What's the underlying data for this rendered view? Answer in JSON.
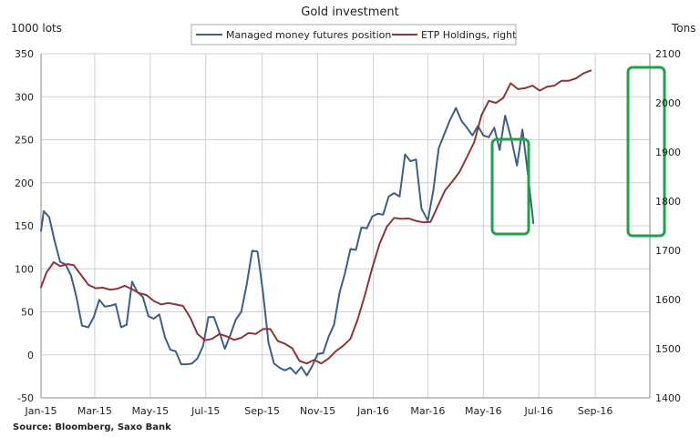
{
  "chart_data": {
    "type": "line",
    "title": "Gold investment",
    "ylabel": "1000 lots",
    "y2label": "Tons",
    "source": "Source: Bloomberg, Saxo Bank",
    "legend_position": "top-center",
    "grid": true,
    "x_range": [
      "2015-01-01",
      "2016-10-31"
    ],
    "xticks": [
      {
        "date": "2015-01-01",
        "label": "Jan-15"
      },
      {
        "date": "2015-03-01",
        "label": "Mar-15"
      },
      {
        "date": "2015-05-01",
        "label": "May-15"
      },
      {
        "date": "2015-07-01",
        "label": "Jul-15"
      },
      {
        "date": "2015-09-01",
        "label": "Sep-15"
      },
      {
        "date": "2015-11-01",
        "label": "Nov-15"
      },
      {
        "date": "2016-01-01",
        "label": "Jan-16"
      },
      {
        "date": "2016-03-01",
        "label": "Mar-16"
      },
      {
        "date": "2016-05-01",
        "label": "May-16"
      },
      {
        "date": "2016-07-01",
        "label": "Jul-16"
      },
      {
        "date": "2016-09-01",
        "label": "Sep-16"
      }
    ],
    "ylim": [
      -50,
      350
    ],
    "yticks": [
      -50,
      0,
      50,
      100,
      150,
      200,
      250,
      300,
      350
    ],
    "y2lim": [
      1400,
      2100
    ],
    "y2ticks": [
      1400,
      1500,
      1600,
      1700,
      1800,
      1900,
      2000,
      2100
    ],
    "series": [
      {
        "name": "Managed money futures position",
        "axis": "left",
        "color": "#3d5f88",
        "points": [
          [
            "2015-01-01",
            144
          ],
          [
            "2015-01-04",
            167
          ],
          [
            "2015-01-10",
            160
          ],
          [
            "2015-01-16",
            132
          ],
          [
            "2015-01-22",
            108
          ],
          [
            "2015-01-28",
            105
          ],
          [
            "2015-02-03",
            92
          ],
          [
            "2015-02-09",
            67
          ],
          [
            "2015-02-15",
            34
          ],
          [
            "2015-02-22",
            32
          ],
          [
            "2015-02-28",
            44
          ],
          [
            "2015-03-06",
            64
          ],
          [
            "2015-03-12",
            56
          ],
          [
            "2015-03-18",
            57
          ],
          [
            "2015-03-24",
            59
          ],
          [
            "2015-03-30",
            32
          ],
          [
            "2015-04-05",
            35
          ],
          [
            "2015-04-11",
            85
          ],
          [
            "2015-04-17",
            73
          ],
          [
            "2015-04-23",
            67
          ],
          [
            "2015-04-29",
            45
          ],
          [
            "2015-05-05",
            42
          ],
          [
            "2015-05-11",
            47
          ],
          [
            "2015-05-17",
            21
          ],
          [
            "2015-05-23",
            6
          ],
          [
            "2015-05-29",
            4
          ],
          [
            "2015-06-04",
            -11
          ],
          [
            "2015-06-10",
            -11
          ],
          [
            "2015-06-16",
            -10
          ],
          [
            "2015-06-22",
            -4
          ],
          [
            "2015-06-28",
            10
          ],
          [
            "2015-07-04",
            44
          ],
          [
            "2015-07-10",
            44
          ],
          [
            "2015-07-16",
            26
          ],
          [
            "2015-07-22",
            7
          ],
          [
            "2015-07-28",
            23
          ],
          [
            "2015-08-03",
            41
          ],
          [
            "2015-08-09",
            50
          ],
          [
            "2015-08-15",
            82
          ],
          [
            "2015-08-21",
            121
          ],
          [
            "2015-08-27",
            120
          ],
          [
            "2015-09-02",
            72
          ],
          [
            "2015-09-08",
            14
          ],
          [
            "2015-09-14",
            -10
          ],
          [
            "2015-09-20",
            -15
          ],
          [
            "2015-09-26",
            -18
          ],
          [
            "2015-10-02",
            -15
          ],
          [
            "2015-10-08",
            -22
          ],
          [
            "2015-10-14",
            -14
          ],
          [
            "2015-10-20",
            -24
          ],
          [
            "2015-10-26",
            -13
          ],
          [
            "2015-11-01",
            1
          ],
          [
            "2015-11-07",
            2
          ],
          [
            "2015-11-13",
            21
          ],
          [
            "2015-11-19",
            35
          ],
          [
            "2015-11-25",
            72
          ],
          [
            "2015-12-01",
            95
          ],
          [
            "2015-12-07",
            123
          ],
          [
            "2015-12-13",
            122
          ],
          [
            "2015-12-19",
            148
          ],
          [
            "2015-12-25",
            147
          ],
          [
            "2015-12-31",
            161
          ],
          [
            "2016-01-06",
            164
          ],
          [
            "2016-01-12",
            163
          ],
          [
            "2016-01-18",
            184
          ],
          [
            "2016-01-24",
            188
          ],
          [
            "2016-01-30",
            184
          ],
          [
            "2016-02-05",
            233
          ],
          [
            "2016-02-11",
            225
          ],
          [
            "2016-02-17",
            227
          ],
          [
            "2016-02-23",
            170
          ],
          [
            "2016-03-01",
            156
          ],
          [
            "2016-03-07",
            191
          ],
          [
            "2016-03-13",
            240
          ],
          [
            "2016-03-19",
            256
          ],
          [
            "2016-03-25",
            272
          ],
          [
            "2016-04-01",
            287
          ],
          [
            "2016-04-07",
            272
          ],
          [
            "2016-04-13",
            264
          ],
          [
            "2016-04-19",
            255
          ],
          [
            "2016-04-25",
            266
          ],
          [
            "2016-05-01",
            255
          ],
          [
            "2016-05-07",
            253
          ],
          [
            "2016-05-13",
            264
          ],
          [
            "2016-05-19",
            238
          ],
          [
            "2016-05-25",
            278
          ],
          [
            "2016-06-01",
            250
          ],
          [
            "2016-06-07",
            220
          ],
          [
            "2016-06-13",
            262
          ],
          [
            "2016-06-19",
            210
          ],
          [
            "2016-06-25",
            153
          ]
        ]
      },
      {
        "name": "ETP Holdings, right",
        "axis": "right",
        "color": "#8e3535",
        "points": [
          [
            "2015-01-01",
            1625
          ],
          [
            "2015-01-07",
            1655
          ],
          [
            "2015-01-15",
            1676
          ],
          [
            "2015-01-22",
            1668
          ],
          [
            "2015-01-30",
            1672
          ],
          [
            "2015-02-06",
            1670
          ],
          [
            "2015-02-14",
            1650
          ],
          [
            "2015-02-22",
            1630
          ],
          [
            "2015-03-02",
            1623
          ],
          [
            "2015-03-10",
            1624
          ],
          [
            "2015-03-18",
            1620
          ],
          [
            "2015-03-26",
            1622
          ],
          [
            "2015-04-03",
            1628
          ],
          [
            "2015-04-11",
            1621
          ],
          [
            "2015-04-19",
            1613
          ],
          [
            "2015-04-27",
            1609
          ],
          [
            "2015-05-05",
            1597
          ],
          [
            "2015-05-13",
            1590
          ],
          [
            "2015-05-21",
            1593
          ],
          [
            "2015-05-29",
            1590
          ],
          [
            "2015-06-06",
            1587
          ],
          [
            "2015-06-14",
            1563
          ],
          [
            "2015-06-22",
            1530
          ],
          [
            "2015-06-30",
            1517
          ],
          [
            "2015-07-08",
            1520
          ],
          [
            "2015-07-16",
            1530
          ],
          [
            "2015-07-24",
            1525
          ],
          [
            "2015-08-01",
            1518
          ],
          [
            "2015-08-09",
            1522
          ],
          [
            "2015-08-17",
            1532
          ],
          [
            "2015-08-25",
            1530
          ],
          [
            "2015-09-02",
            1540
          ],
          [
            "2015-09-10",
            1540
          ],
          [
            "2015-09-18",
            1516
          ],
          [
            "2015-09-26",
            1510
          ],
          [
            "2015-10-04",
            1501
          ],
          [
            "2015-10-12",
            1475
          ],
          [
            "2015-10-20",
            1470
          ],
          [
            "2015-10-28",
            1477
          ],
          [
            "2015-11-05",
            1470
          ],
          [
            "2015-11-13",
            1480
          ],
          [
            "2015-11-21",
            1495
          ],
          [
            "2015-11-29",
            1506
          ],
          [
            "2015-12-07",
            1520
          ],
          [
            "2015-12-15",
            1560
          ],
          [
            "2015-12-23",
            1610
          ],
          [
            "2015-12-31",
            1665
          ],
          [
            "2016-01-08",
            1713
          ],
          [
            "2016-01-16",
            1748
          ],
          [
            "2016-01-24",
            1766
          ],
          [
            "2016-02-01",
            1764
          ],
          [
            "2016-02-09",
            1765
          ],
          [
            "2016-02-17",
            1760
          ],
          [
            "2016-02-25",
            1757
          ],
          [
            "2016-03-04",
            1758
          ],
          [
            "2016-03-12",
            1790
          ],
          [
            "2016-03-20",
            1822
          ],
          [
            "2016-03-28",
            1840
          ],
          [
            "2016-04-05",
            1860
          ],
          [
            "2016-04-13",
            1890
          ],
          [
            "2016-04-21",
            1920
          ],
          [
            "2016-04-29",
            1975
          ],
          [
            "2016-05-07",
            2004
          ],
          [
            "2016-05-15",
            2000
          ],
          [
            "2016-05-23",
            2010
          ],
          [
            "2016-05-31",
            2040
          ],
          [
            "2016-06-08",
            2028
          ],
          [
            "2016-06-16",
            2030
          ],
          [
            "2016-06-24",
            2035
          ],
          [
            "2016-07-02",
            2025
          ],
          [
            "2016-07-10",
            2033
          ],
          [
            "2016-07-18",
            2035
          ],
          [
            "2016-07-26",
            2045
          ],
          [
            "2016-08-03",
            2045
          ],
          [
            "2016-08-11",
            2050
          ],
          [
            "2016-08-19",
            2060
          ],
          [
            "2016-08-27",
            2066
          ]
        ]
      }
    ]
  },
  "colors": {
    "highlight_box": "#1ea34a",
    "grid": "#cfcfcf",
    "axis": "#888888"
  }
}
